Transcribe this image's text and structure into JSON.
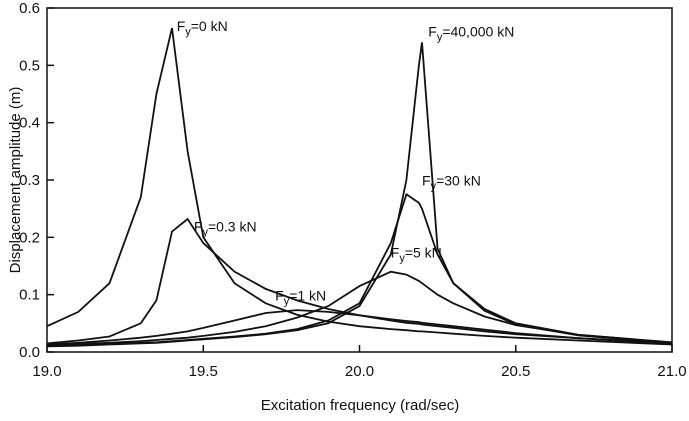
{
  "chart_data": {
    "type": "line",
    "x_label": "Excitation frequency (rad/sec)",
    "y_label": "Displacement amplitude (m)",
    "xlim": [
      19.0,
      21.0
    ],
    "xticks": [
      {
        "value": 19,
        "label": "19.0"
      },
      {
        "value": 19.5,
        "label": "19.5"
      },
      {
        "value": 20,
        "label": "20.0"
      },
      {
        "value": 20.5,
        "label": "20.5"
      },
      {
        "value": 21,
        "label": "21.0"
      }
    ],
    "ylim": [
      0,
      0.6
    ],
    "yticks": [
      {
        "value": 0,
        "label": "0.0"
      },
      0.1,
      0.2,
      0.3,
      0.4,
      0.5,
      0.6
    ],
    "x": [
      19.0,
      19.1,
      19.2,
      19.3,
      19.35,
      19.4,
      19.45,
      19.5,
      19.6,
      19.7,
      19.8,
      19.9,
      20.0,
      20.1,
      20.15,
      20.19,
      20.2,
      20.25,
      20.3,
      20.4,
      20.5,
      20.7,
      21.0
    ],
    "series": [
      {
        "name": "Fy=0 kN",
        "color": "#111111",
        "values": [
          0.045,
          0.07,
          0.12,
          0.27,
          0.45,
          0.565,
          0.35,
          0.2,
          0.12,
          0.085,
          0.065,
          0.053,
          0.045,
          0.04,
          0.038,
          0.036,
          0.036,
          0.034,
          0.032,
          0.028,
          0.025,
          0.02,
          0.013
        ]
      },
      {
        "name": "Fy=0.3 kN",
        "color": "#111111",
        "values": [
          0.015,
          0.02,
          0.027,
          0.05,
          0.09,
          0.21,
          0.232,
          0.19,
          0.14,
          0.11,
          0.09,
          0.075,
          0.064,
          0.055,
          0.051,
          0.049,
          0.048,
          0.045,
          0.042,
          0.036,
          0.031,
          0.024,
          0.015
        ]
      },
      {
        "name": "Fy=1 kN",
        "color": "#111111",
        "values": [
          0.013,
          0.016,
          0.02,
          0.025,
          0.028,
          0.032,
          0.036,
          0.042,
          0.055,
          0.068,
          0.073,
          0.07,
          0.064,
          0.057,
          0.054,
          0.052,
          0.051,
          0.048,
          0.045,
          0.039,
          0.033,
          0.024,
          0.014
        ]
      },
      {
        "name": "Fy=5 kN",
        "color": "#111111",
        "values": [
          0.012,
          0.014,
          0.016,
          0.019,
          0.021,
          0.023,
          0.025,
          0.028,
          0.035,
          0.045,
          0.06,
          0.08,
          0.115,
          0.14,
          0.135,
          0.124,
          0.12,
          0.1,
          0.085,
          0.062,
          0.047,
          0.03,
          0.017
        ]
      },
      {
        "name": "Fy=30 kN",
        "color": "#111111",
        "values": [
          0.011,
          0.012,
          0.014,
          0.016,
          0.017,
          0.019,
          0.021,
          0.023,
          0.027,
          0.032,
          0.04,
          0.055,
          0.085,
          0.19,
          0.275,
          0.26,
          0.25,
          0.17,
          0.12,
          0.075,
          0.05,
          0.03,
          0.016
        ]
      },
      {
        "name": "Fy=40,000 kN",
        "color": "#111111",
        "values": [
          0.01,
          0.011,
          0.013,
          0.015,
          0.016,
          0.018,
          0.02,
          0.022,
          0.026,
          0.031,
          0.038,
          0.05,
          0.08,
          0.17,
          0.3,
          0.5,
          0.54,
          0.18,
          0.12,
          0.072,
          0.048,
          0.029,
          0.015
        ]
      }
    ]
  }
}
